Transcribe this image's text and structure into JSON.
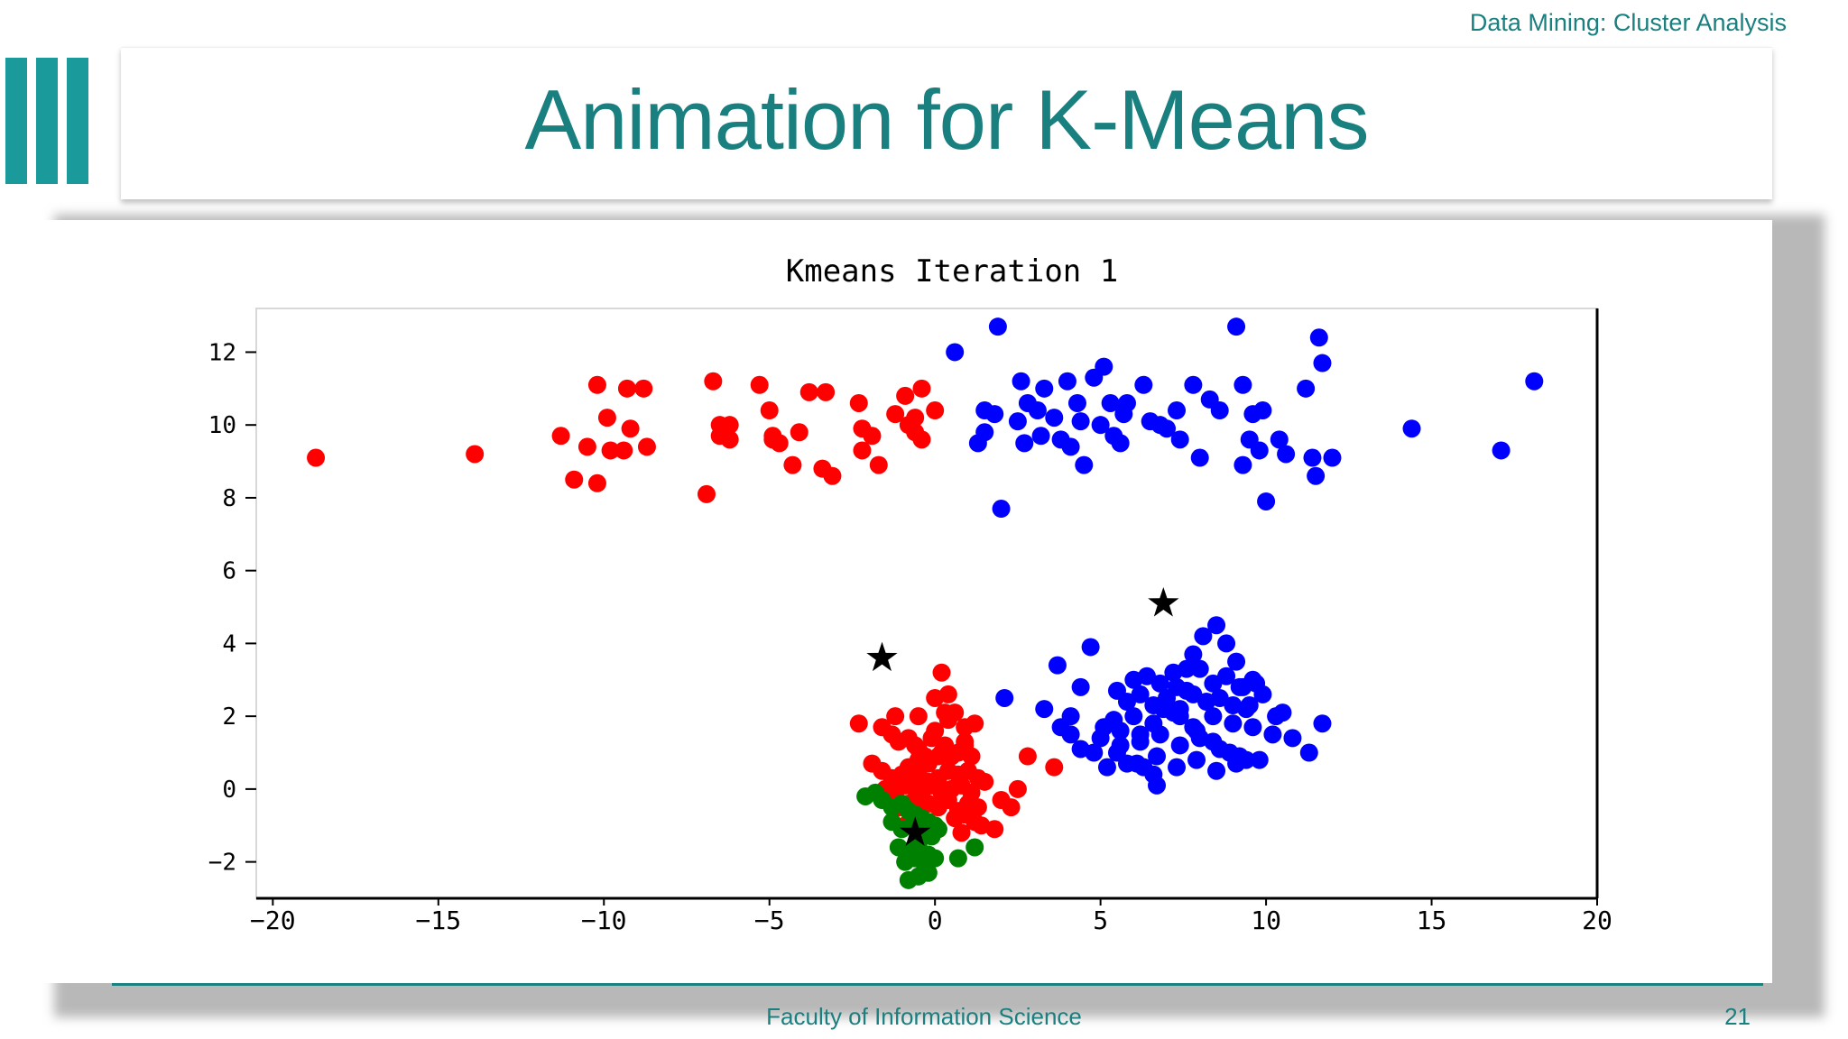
{
  "header": {
    "course": "Data Mining: Cluster Analysis"
  },
  "slide": {
    "title": "Animation for K-Means",
    "footer": "Faculty of Information Science",
    "page_number": "21"
  },
  "colors": {
    "accent": "#1a8f8f",
    "cluster_red": "#ff0000",
    "cluster_blue": "#0000ff",
    "cluster_green": "#008000",
    "centroid": "#000000"
  },
  "chart_data": {
    "type": "scatter",
    "title": "Kmeans Iteration 1",
    "xlabel": "",
    "ylabel": "",
    "xlim": [
      -20.5,
      20
    ],
    "ylim": [
      -3,
      13.2
    ],
    "xticks": [
      -20,
      -15,
      -10,
      -5,
      0,
      5,
      10,
      15,
      20
    ],
    "xtick_labels": [
      "−20",
      "−15",
      "−10",
      "−5",
      "0",
      "5",
      "10",
      "15",
      "20"
    ],
    "yticks": [
      -2,
      0,
      2,
      4,
      6,
      8,
      10,
      12
    ],
    "ytick_labels": [
      "−2",
      "0",
      "2",
      "4",
      "6",
      "8",
      "10",
      "12"
    ],
    "grid": false,
    "legend": "none",
    "series": [
      {
        "color": "#ff0000",
        "marker": "circle",
        "x": [
          -18.7,
          -13.9,
          -11.3,
          -10.5,
          -10.9,
          -10.2,
          -10.2,
          -9.9,
          -9.4,
          -9.8,
          -9.3,
          -9.2,
          -8.8,
          -8.7,
          -6.7,
          -6.5,
          -6.9,
          -6.5,
          -6.2,
          -6.2,
          -5.3,
          -4.9,
          -5.0,
          -4.9,
          -4.3,
          -4.7,
          -4.1,
          -3.8,
          -3.4,
          -3.1,
          -3.3,
          -2.2,
          -2.3,
          -2.2,
          -1.9,
          -1.7,
          -1.2,
          -0.9,
          -0.8,
          -0.6,
          -0.6,
          -0.4,
          -0.4,
          0.0,
          0.2,
          0.4,
          0.4,
          0.4,
          -2.3,
          -1.6,
          -1.2,
          -0.5,
          0.0,
          0.3,
          0.6,
          0.9,
          1.2,
          0.9,
          -1.3,
          -1.1,
          -0.8,
          -0.6,
          -0.5,
          -0.3,
          -0.1,
          0.0,
          0.3,
          0.2,
          -0.8,
          -0.5,
          -0.2,
          0.1,
          0.3,
          0.5,
          0.7,
          0.9,
          1.1,
          -1.9,
          -1.6,
          -1.3,
          -1.0,
          -0.7,
          -0.5,
          -0.2,
          0.1,
          0.4,
          0.7,
          1.0,
          1.3,
          1.5,
          -1.5,
          -1.2,
          -0.9,
          -0.6,
          -0.4,
          -0.1,
          0.2,
          0.5,
          0.8,
          1.1,
          -1.1,
          -0.8,
          -0.5,
          -0.2,
          0.1,
          0.4,
          0.7,
          1.0,
          1.3,
          0.6,
          0.9,
          1.2,
          1.4,
          2.0,
          2.3,
          2.5,
          2.8,
          3.6,
          -0.9,
          0.1,
          0.8,
          1.8
        ],
        "y": [
          9.1,
          9.2,
          9.7,
          9.4,
          8.5,
          8.4,
          11.1,
          10.2,
          9.3,
          9.3,
          11.0,
          9.9,
          11.0,
          9.4,
          11.2,
          10.0,
          8.1,
          9.7,
          10.0,
          9.6,
          11.1,
          9.6,
          10.4,
          9.7,
          8.9,
          9.5,
          9.8,
          10.9,
          8.8,
          8.6,
          10.9,
          9.9,
          10.6,
          9.3,
          9.7,
          8.9,
          10.3,
          10.8,
          10.0,
          9.8,
          10.2,
          11.0,
          9.6,
          10.4,
          3.2,
          2.6,
          1.9,
          2.0,
          1.8,
          1.7,
          2.0,
          2.0,
          2.5,
          2.1,
          2.1,
          1.7,
          1.8,
          1.3,
          1.5,
          1.3,
          1.4,
          1.2,
          1.1,
          0.9,
          1.4,
          1.6,
          1.2,
          1.0,
          0.6,
          0.8,
          0.7,
          0.9,
          1.0,
          0.9,
          1.0,
          1.2,
          0.9,
          0.7,
          0.5,
          0.3,
          0.4,
          0.5,
          0.4,
          0.2,
          0.3,
          0.5,
          0.4,
          0.5,
          0.3,
          0.2,
          0.0,
          -0.1,
          0.1,
          0.0,
          -0.2,
          0.1,
          -0.1,
          0.0,
          0.1,
          -0.1,
          -0.5,
          -0.4,
          -0.6,
          -0.4,
          -0.5,
          -0.3,
          -0.6,
          -0.4,
          -0.5,
          -0.8,
          -0.7,
          -0.9,
          -1.0,
          -0.3,
          -0.5,
          0.0,
          0.9,
          0.6,
          -1.0,
          -1.1,
          -1.2,
          -1.1
        ]
      },
      {
        "color": "#0000ff",
        "marker": "circle",
        "x": [
          0.6,
          1.9,
          2.0,
          1.3,
          1.5,
          1.8,
          1.5,
          2.5,
          2.6,
          2.7,
          3.1,
          3.2,
          2.8,
          3.3,
          3.6,
          3.8,
          4.0,
          4.3,
          4.5,
          4.1,
          4.4,
          4.8,
          5.1,
          5.3,
          5.0,
          5.4,
          5.7,
          5.8,
          5.6,
          6.3,
          6.5,
          7.0,
          6.8,
          7.3,
          7.4,
          7.8,
          8.3,
          8.0,
          8.6,
          9.1,
          9.3,
          9.6,
          9.5,
          9.3,
          9.8,
          10.0,
          10.4,
          10.6,
          11.2,
          11.4,
          11.5,
          11.6,
          11.7,
          12.0,
          14.4,
          17.1,
          18.1,
          9.9,
          2.1,
          3.7,
          4.7,
          4.4,
          4.1,
          3.3,
          3.8,
          4.4,
          4.1,
          5.5,
          5.1,
          5.6,
          5.8,
          6.3,
          6.6,
          6.7,
          6.2,
          6.9,
          7.3,
          7.6,
          7.8,
          8.1,
          8.5,
          8.8,
          9.1,
          9.3,
          9.5,
          9.7,
          9.9,
          10.3,
          10.5,
          10.8,
          11.3,
          11.7,
          6.0,
          6.4,
          6.8,
          7.2,
          7.6,
          8.0,
          8.4,
          8.8,
          9.2,
          9.6,
          5.8,
          6.2,
          6.6,
          7.0,
          7.4,
          7.8,
          8.2,
          8.6,
          9.0,
          9.4,
          5.4,
          6.0,
          6.6,
          7.2,
          7.8,
          8.4,
          9.0,
          9.6,
          10.2,
          5.0,
          5.6,
          6.2,
          6.8,
          7.4,
          8.0,
          8.6,
          9.2,
          9.8,
          5.5,
          6.1,
          6.7,
          7.3,
          7.9,
          8.5,
          9.1,
          4.8,
          5.2,
          6.9,
          7.4,
          7.9,
          8.4,
          8.9,
          9.4
        ],
        "y": [
          12.0,
          12.7,
          7.7,
          9.5,
          10.4,
          10.3,
          9.8,
          10.1,
          11.2,
          9.5,
          10.4,
          9.7,
          10.6,
          11.0,
          10.2,
          9.6,
          11.2,
          10.6,
          8.9,
          9.4,
          10.1,
          11.3,
          11.6,
          10.6,
          10.0,
          9.7,
          10.3,
          10.6,
          9.5,
          11.1,
          10.1,
          9.9,
          10.0,
          10.4,
          9.6,
          11.1,
          10.7,
          9.1,
          10.4,
          12.7,
          11.1,
          10.3,
          9.6,
          8.9,
          9.3,
          7.9,
          9.6,
          9.2,
          11.0,
          9.1,
          8.6,
          12.4,
          11.7,
          9.1,
          9.9,
          9.3,
          11.2,
          10.4,
          2.5,
          3.4,
          3.9,
          2.8,
          2.0,
          2.2,
          1.7,
          1.1,
          1.5,
          2.7,
          1.7,
          1.2,
          0.7,
          0.6,
          0.4,
          0.1,
          1.5,
          2.2,
          2.8,
          3.3,
          3.7,
          4.2,
          4.5,
          4.0,
          3.5,
          2.8,
          2.3,
          2.9,
          2.6,
          2.0,
          2.1,
          1.4,
          1.0,
          1.8,
          3.0,
          3.1,
          2.9,
          3.2,
          2.7,
          3.3,
          2.9,
          3.1,
          2.8,
          3.0,
          2.4,
          2.6,
          2.3,
          2.5,
          2.2,
          2.6,
          2.4,
          2.5,
          2.3,
          2.2,
          1.9,
          2.0,
          1.8,
          2.1,
          1.7,
          2.0,
          1.8,
          1.7,
          1.5,
          1.4,
          1.6,
          1.3,
          1.5,
          1.2,
          1.4,
          1.1,
          0.9,
          0.8,
          1.0,
          0.7,
          0.9,
          0.6,
          0.8,
          0.5,
          0.7,
          1.0,
          0.6,
          2.3,
          2.0,
          1.6,
          1.3,
          1.0,
          0.8
        ]
      },
      {
        "color": "#008000",
        "marker": "circle",
        "x": [
          -2.1,
          -1.8,
          -1.6,
          -1.3,
          -1.0,
          -0.8,
          -0.6,
          -0.4,
          -0.2,
          0.0,
          -1.3,
          -1.0,
          -0.7,
          -0.4,
          -0.1,
          0.1,
          -1.1,
          -0.8,
          -0.5,
          -0.2,
          -0.9,
          -0.6,
          -0.3,
          0.0,
          -0.8,
          -0.5,
          -0.2,
          0.7,
          1.2
        ],
        "y": [
          -0.2,
          -0.1,
          -0.3,
          -0.5,
          -0.4,
          -0.6,
          -0.7,
          -0.8,
          -0.9,
          -1.0,
          -0.9,
          -1.1,
          -1.0,
          -1.2,
          -1.3,
          -1.1,
          -1.6,
          -1.7,
          -1.5,
          -1.8,
          -2.0,
          -1.9,
          -2.2,
          -1.9,
          -2.5,
          -2.4,
          -2.3,
          -1.9,
          -1.6
        ]
      },
      {
        "color": "#000000",
        "marker": "star",
        "x": [
          -1.6,
          6.9,
          -0.6
        ],
        "y": [
          3.6,
          5.1,
          -1.2
        ]
      }
    ]
  }
}
